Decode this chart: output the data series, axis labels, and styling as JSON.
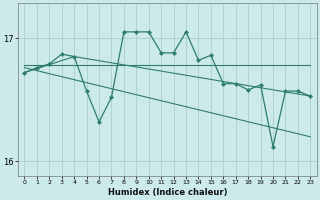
{
  "xlabel": "Humidex (Indice chaleur)",
  "bg_color": "#cceaea",
  "grid_color": "#aacfcf",
  "line_color": "#2e7d6e",
  "series_main": {
    "x": [
      0,
      1,
      2,
      3,
      4,
      5,
      6,
      7,
      8,
      9,
      10,
      11,
      12,
      13,
      14,
      15,
      16,
      17,
      18,
      19,
      20,
      21,
      22,
      23
    ],
    "y": [
      16.72,
      16.76,
      16.79,
      16.87,
      16.85,
      16.57,
      16.32,
      16.52,
      17.05,
      17.05,
      17.05,
      16.88,
      16.88,
      17.05,
      16.82,
      16.86,
      16.63,
      16.63,
      16.58,
      16.62,
      16.12,
      16.57,
      16.57,
      16.53
    ]
  },
  "series_flat": {
    "x": [
      0,
      23
    ],
    "y": [
      16.78,
      16.78
    ]
  },
  "series_trend1": {
    "x": [
      0,
      4,
      23
    ],
    "y": [
      16.72,
      16.85,
      16.53
    ]
  },
  "series_trend2": {
    "x": [
      0,
      23
    ],
    "y": [
      16.76,
      16.2
    ]
  },
  "ylim": [
    15.88,
    17.28
  ],
  "yticks": [
    16,
    17
  ],
  "xticks": [
    0,
    1,
    2,
    3,
    4,
    5,
    6,
    7,
    8,
    9,
    10,
    11,
    12,
    13,
    14,
    15,
    16,
    17,
    18,
    19,
    20,
    21,
    22,
    23
  ]
}
